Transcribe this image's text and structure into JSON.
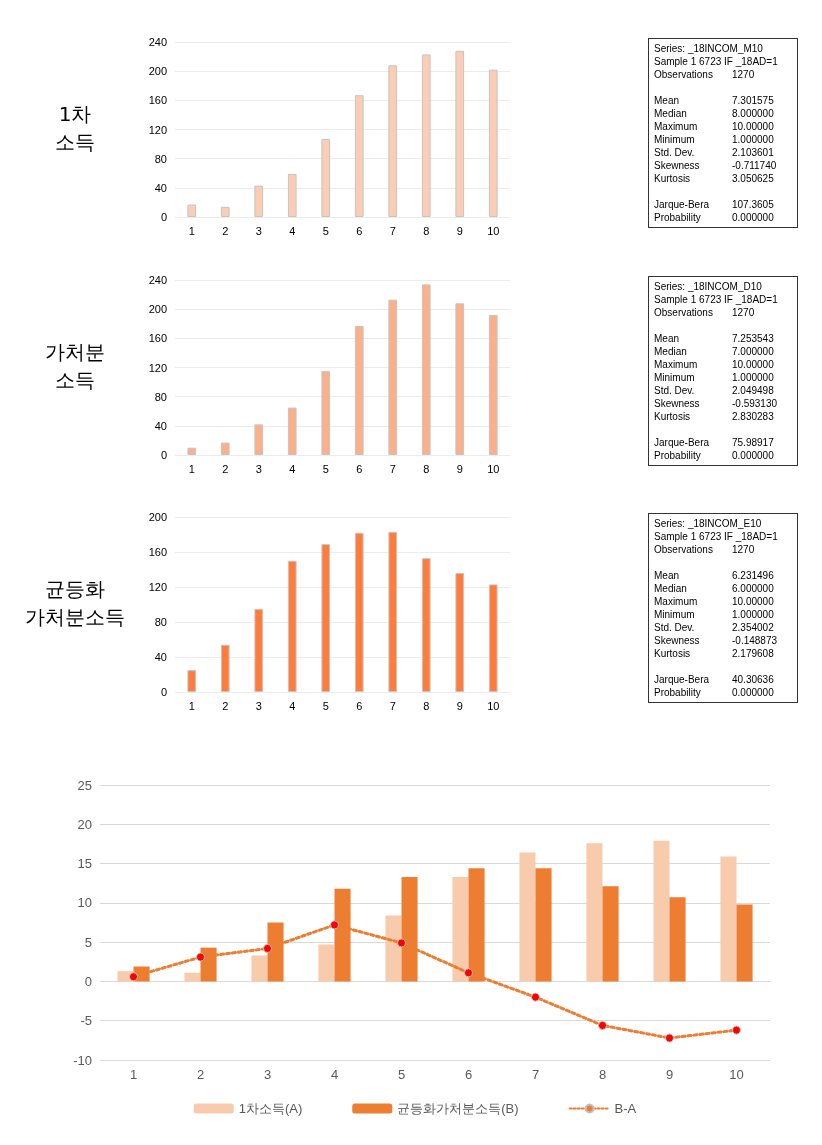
{
  "chart_data": [
    {
      "type": "bar",
      "title": "1차 소득",
      "categories": [
        "1",
        "2",
        "3",
        "4",
        "5",
        "6",
        "7",
        "8",
        "9",
        "10"
      ],
      "values": [
        17,
        14,
        43,
        59,
        107,
        167,
        208,
        223,
        228,
        202
      ],
      "color": "#fbcdb4",
      "ylim": [
        0,
        240
      ],
      "yticks": [
        0,
        40,
        80,
        120,
        160,
        200,
        240
      ],
      "grid": "y",
      "legend": false,
      "annotations": [
        "Series: _18INCOM_M10",
        "Sample 1 6723 IF _18AD=1",
        "Observations 1270",
        "Mean 7.301575",
        "Median 8.000000",
        "Maximum 10.00000",
        "Minimum 1.000000",
        "Std. Dev. 2.103601",
        "Skewness -0.711740",
        "Kurtosis 3.050625",
        "Jarque-Bera 107.3605",
        "Probability 0.000000"
      ]
    },
    {
      "type": "bar",
      "title": "가처분 소득",
      "categories": [
        "1",
        "2",
        "3",
        "4",
        "5",
        "6",
        "7",
        "8",
        "9",
        "10"
      ],
      "values": [
        10,
        17,
        42,
        65,
        115,
        177,
        213,
        234,
        208,
        192
      ],
      "color": "#fbb08a",
      "ylim": [
        0,
        240
      ],
      "yticks": [
        0,
        40,
        80,
        120,
        160,
        200,
        240
      ],
      "grid": "y",
      "legend": false,
      "annotations": [
        "Series: _18INCOM_D10",
        "Sample 1 6723 IF _18AD=1",
        "Observations 1270",
        "Mean 7.253543",
        "Median 7.000000",
        "Maximum 10.00000",
        "Minimum 1.000000",
        "Std. Dev. 2.049498",
        "Skewness -0.593130",
        "Kurtosis 2.830283",
        "Jarque-Bera 75.98917",
        "Probability 0.000000"
      ]
    },
    {
      "type": "bar",
      "title": "균등화 가처분소득",
      "categories": [
        "1",
        "2",
        "3",
        "4",
        "5",
        "6",
        "7",
        "8",
        "9",
        "10"
      ],
      "values": [
        25,
        54,
        95,
        150,
        169,
        182,
        183,
        153,
        136,
        123
      ],
      "color": "#ff7c3c",
      "ylim": [
        0,
        200
      ],
      "yticks": [
        0,
        40,
        80,
        120,
        160,
        200
      ],
      "grid": "y",
      "legend": false,
      "annotations": [
        "Series: _18INCOM_E10",
        "Sample 1 6723 IF _18AD=1",
        "Observations 1270",
        "Mean 6.231496",
        "Median 6.000000",
        "Maximum 10.00000",
        "Minimum 1.000000",
        "Std. Dev. 2.354002",
        "Skewness -0.148873",
        "Kurtosis 2.179608",
        "Jarque-Bera 40.30636",
        "Probability 0.000000"
      ]
    },
    {
      "type": "bar",
      "categories": [
        "1",
        "2",
        "3",
        "4",
        "5",
        "6",
        "7",
        "8",
        "9",
        "10"
      ],
      "ylim": [
        -10,
        25
      ],
      "yticks": [
        -10,
        -5,
        0,
        5,
        10,
        15,
        20,
        25
      ],
      "grid": "y",
      "legend": "bottom",
      "series": [
        {
          "name": "1차소득(A)",
          "color": "#f8cbad",
          "values": [
            1.3,
            1.1,
            3.3,
            4.7,
            8.4,
            13.3,
            16.4,
            17.6,
            17.9,
            15.9
          ]
        },
        {
          "name": "균등화가처분소득(B)",
          "color": "#ed7d31",
          "values": [
            1.9,
            4.3,
            7.5,
            11.8,
            13.3,
            14.4,
            14.4,
            12.1,
            10.7,
            9.8
          ]
        },
        {
          "name": "B-A",
          "type": "line",
          "color": "#ed7d31",
          "colors": [
            "#ff0000",
            "#ff0000",
            "#ff0000",
            "#ff0000",
            "#ff0000",
            "#ff0000",
            "#ff0000",
            "#ff0000",
            "#ff0000",
            "#ff0000"
          ],
          "marker": "circle",
          "line_style": "dotted",
          "values": [
            0.6,
            3.1,
            4.2,
            7.2,
            4.9,
            1.1,
            -2.0,
            -5.6,
            -7.2,
            -6.2
          ]
        }
      ]
    }
  ]
}
